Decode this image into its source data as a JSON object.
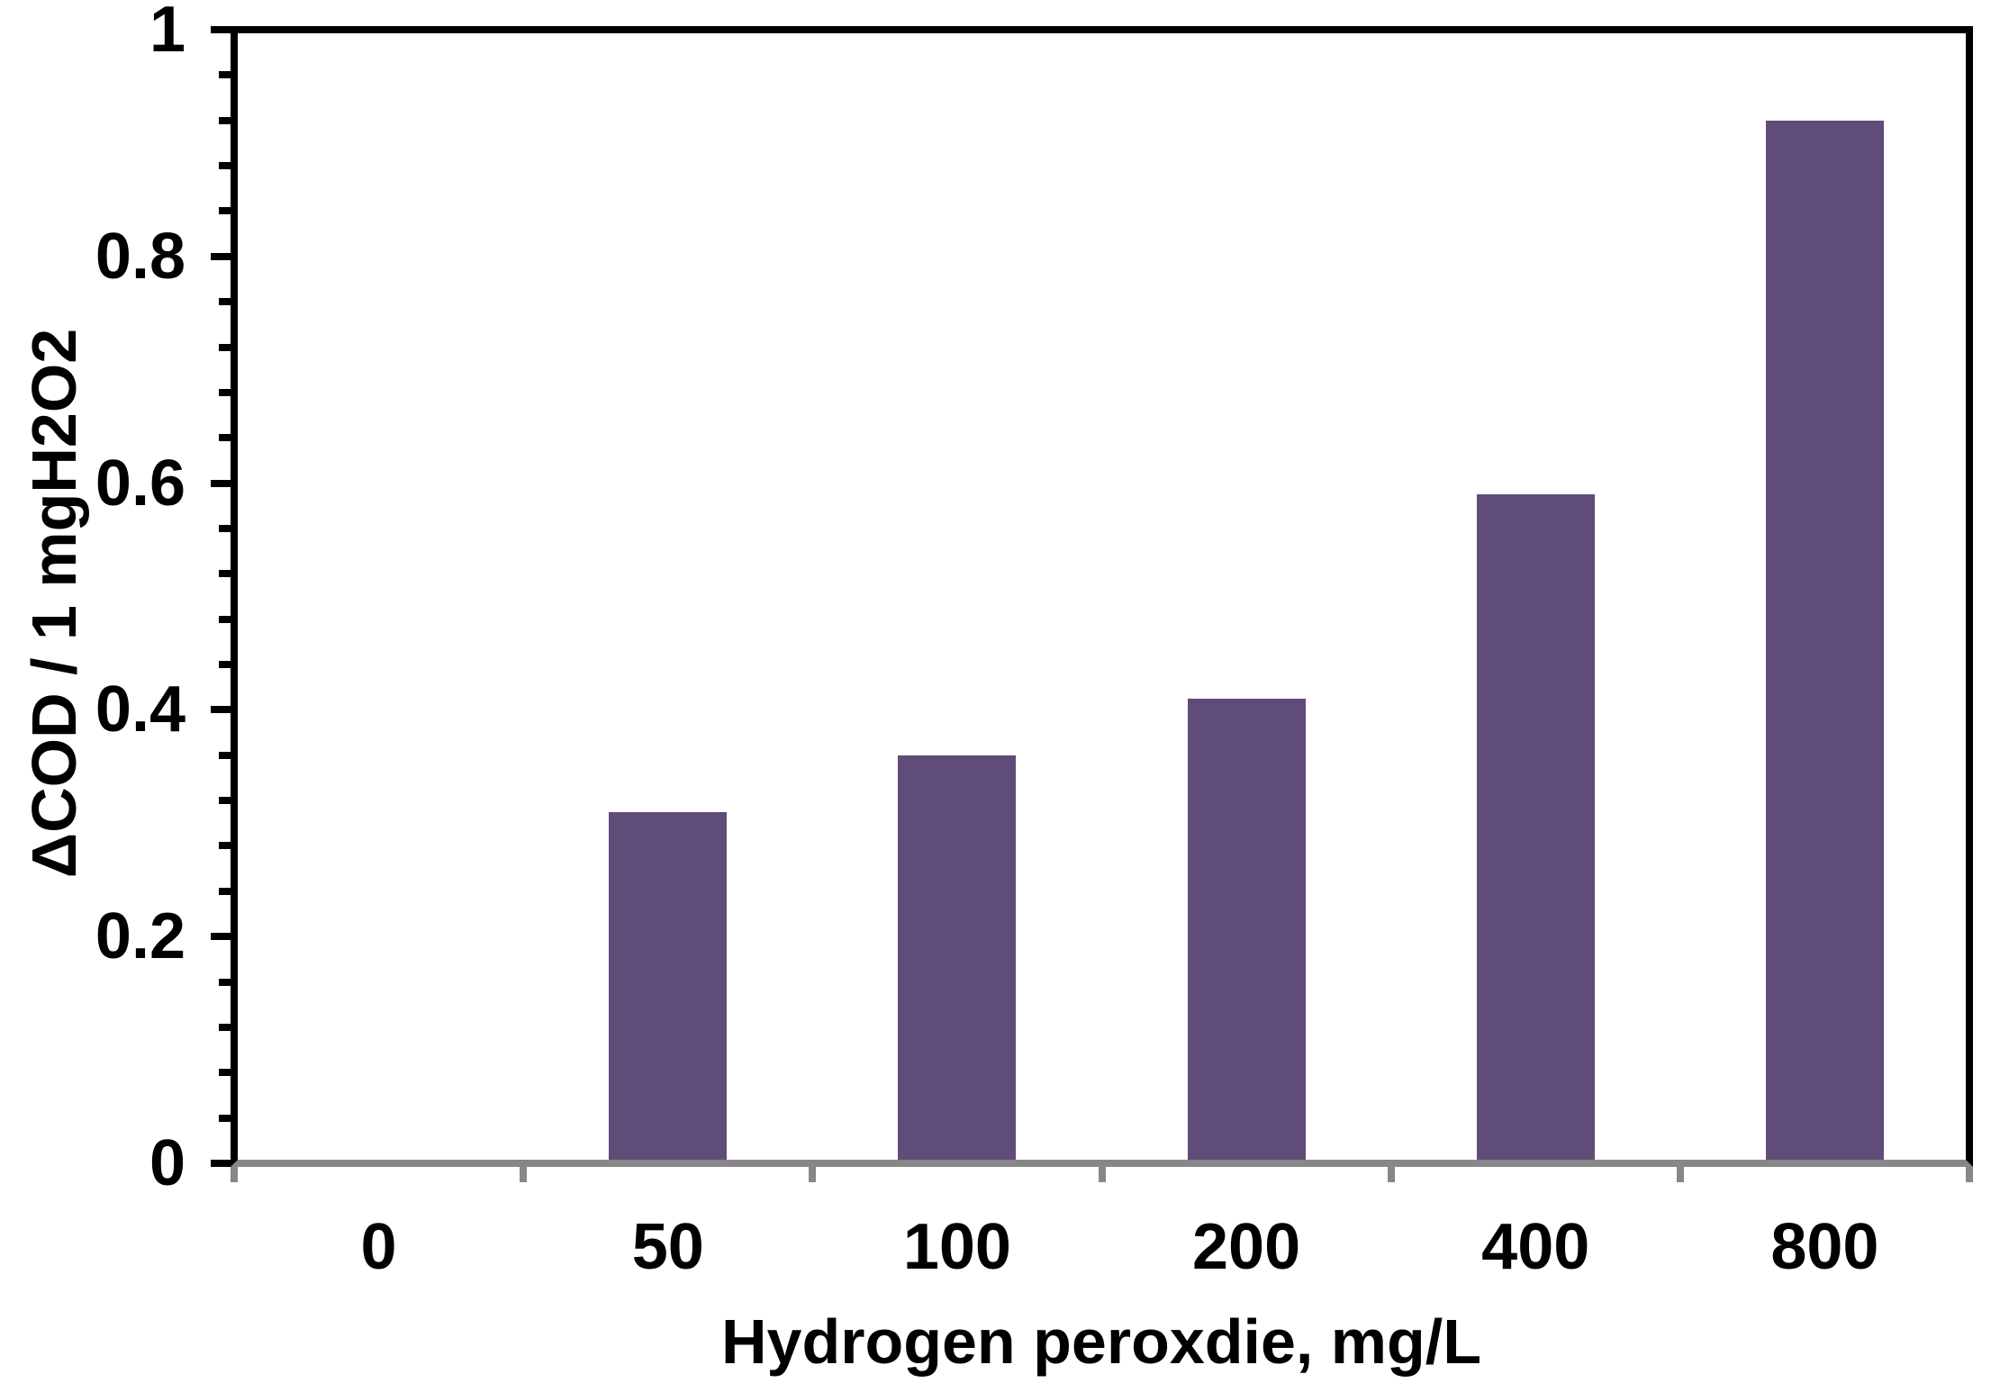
{
  "chart_data": {
    "type": "bar",
    "title": "",
    "categories": [
      "0",
      "50",
      "100",
      "200",
      "400",
      "800"
    ],
    "values": [
      0,
      0.31,
      0.36,
      0.41,
      0.59,
      0.92
    ],
    "xlabel": "Hydrogen peroxdie, mg/L",
    "ylabel": "ΔCOD / 1 mgH2O2",
    "ylim": [
      0,
      1
    ],
    "y_major_ticks": [
      0,
      0.2,
      0.4,
      0.6,
      0.8,
      1
    ],
    "y_tick_labels": [
      "0",
      "0.2",
      "0.4",
      "0.6",
      "0.8",
      "1"
    ],
    "y_minor_unit": 0.04,
    "grid": false,
    "legend": "none",
    "colors": {
      "bar": "#604C78",
      "x_axis": "#878787",
      "y_axis": "#000000",
      "plot_border": "#000000",
      "text": "#000000",
      "background": "#FFFFFF"
    }
  }
}
